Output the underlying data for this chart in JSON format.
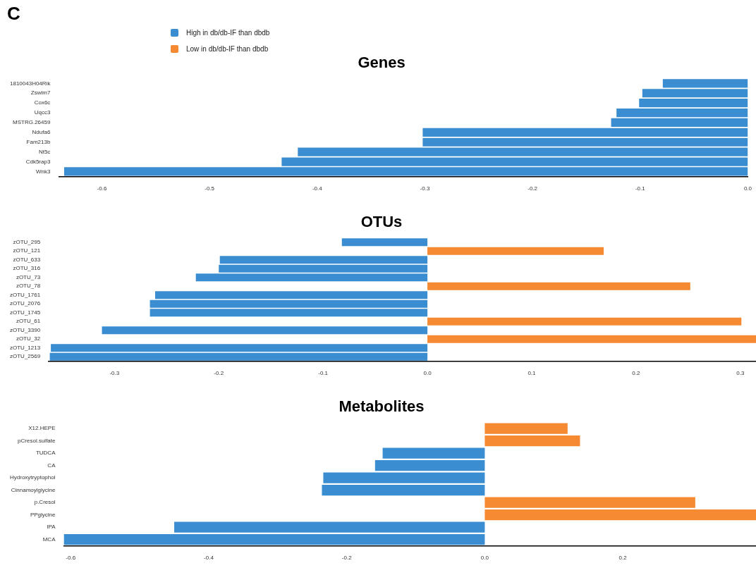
{
  "chart_data": [
    {
      "type": "bar",
      "orientation": "horizontal",
      "title": "Genes",
      "annotations": [
        "C"
      ],
      "legend": "top left",
      "categories": [
        "1810043H04Rik",
        "Zswim7",
        "Cox6c",
        "Uqcc3",
        "MSTRG.26459",
        "Ndufa6",
        "Fam213b",
        "Nt5c",
        "Cdk5rap3",
        "Wnk3"
      ],
      "series": [
        {
          "name": "High in db/db-IF than dbdb",
          "color": "#3a8dd0",
          "values": [
            -0.079,
            -0.098,
            -0.101,
            -0.122,
            -0.127,
            -0.302,
            -0.302,
            -0.418,
            -0.433,
            -0.635
          ]
        },
        {
          "name": "Low in db/db-IF than dbdb",
          "color": "#f58a32",
          "values": [
            null,
            null,
            null,
            null,
            null,
            null,
            null,
            null,
            null,
            null
          ]
        }
      ],
      "xlim": [
        -0.64,
        0
      ],
      "xticks": [
        {
          "value": -0.6,
          "label": "-0.6"
        },
        {
          "value": -0.5,
          "label": "-0.5"
        },
        {
          "value": -0.4,
          "label": "-0.4"
        },
        {
          "value": -0.3,
          "label": "-0.3"
        },
        {
          "value": -0.2,
          "label": "-0.2"
        },
        {
          "value": -0.1,
          "label": "-0.1"
        },
        {
          "value": 0,
          "label": "0.0"
        }
      ]
    },
    {
      "type": "bar",
      "orientation": "horizontal",
      "title": "OTUs",
      "categories": [
        "zOTU_295",
        "zOTU_121",
        "zOTU_633",
        "zOTU_316",
        "zOTU_73",
        "zOTU_78",
        "zOTU_1761",
        "zOTU_2076",
        "zOTU_1745",
        "zOTU_61",
        "zOTU_3390",
        "zOTU_32",
        "zOTU_1213",
        "zOTU_2569"
      ],
      "series": [
        {
          "color": "#3a8dd0",
          "values": [
            -0.082,
            null,
            -0.199,
            -0.2,
            -0.222,
            null,
            -0.261,
            -0.266,
            -0.266,
            null,
            -0.312,
            null,
            -0.361,
            -0.362
          ]
        },
        {
          "color": "#f58a32",
          "values": [
            null,
            0.169,
            null,
            null,
            null,
            0.252,
            null,
            null,
            null,
            0.301,
            null,
            0.315,
            null,
            null
          ]
        }
      ],
      "xlim": [
        -0.363,
        0.315
      ],
      "xticks": [
        {
          "value": -0.3,
          "label": "-0.3"
        },
        {
          "value": -0.2,
          "label": "-0.2"
        },
        {
          "value": -0.1,
          "label": "-0.1"
        },
        {
          "value": 0,
          "label": "0.0"
        },
        {
          "value": 0.1,
          "label": "0.1"
        },
        {
          "value": 0.2,
          "label": "0.2"
        },
        {
          "value": 0.3,
          "label": "0.3"
        }
      ]
    },
    {
      "type": "bar",
      "orientation": "horizontal",
      "title": "Metabolites",
      "categories": [
        "X12.HEPE",
        "pCresol.sulfate",
        "TUDCA",
        "CA",
        "Hydroxytryptophol",
        "Cinnamoylglycine",
        "p.Cresol",
        "PPglycine",
        "IPA",
        "MCA"
      ],
      "series": [
        {
          "color": "#3a8dd0",
          "values": [
            null,
            null,
            -0.148,
            -0.159,
            -0.234,
            -0.236,
            null,
            null,
            -0.45,
            -0.61
          ]
        },
        {
          "color": "#f58a32",
          "values": [
            0.12,
            0.138,
            null,
            null,
            null,
            null,
            0.305,
            0.393,
            null,
            null
          ]
        }
      ],
      "xlim": [
        -0.61,
        0.393
      ],
      "xticks": [
        {
          "value": -0.6,
          "label": "-0.6"
        },
        {
          "value": -0.4,
          "label": "-0.4"
        },
        {
          "value": -0.2,
          "label": "-0.2"
        },
        {
          "value": 0,
          "label": "0.0"
        },
        {
          "value": 0.2,
          "label": "0.2"
        }
      ]
    }
  ]
}
